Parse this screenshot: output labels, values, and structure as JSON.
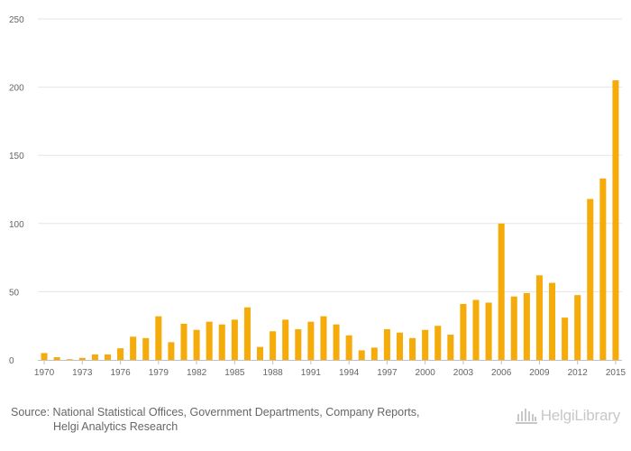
{
  "chart_data": {
    "type": "bar",
    "title": "",
    "xlabel": "",
    "ylabel": "",
    "ylim": [
      0,
      250
    ],
    "yticks": [
      0,
      50,
      100,
      150,
      200,
      250
    ],
    "grid": true,
    "legend": "none",
    "bar_color": "#f5ab0a",
    "categories": [
      1970,
      1971,
      1972,
      1973,
      1974,
      1975,
      1976,
      1977,
      1978,
      1979,
      1980,
      1981,
      1982,
      1983,
      1984,
      1985,
      1986,
      1987,
      1988,
      1989,
      1990,
      1991,
      1992,
      1993,
      1994,
      1995,
      1996,
      1997,
      1998,
      1999,
      2000,
      2001,
      2002,
      2003,
      2004,
      2005,
      2006,
      2007,
      2008,
      2009,
      2010,
      2011,
      2012,
      2013,
      2014,
      2015
    ],
    "values": [
      5,
      2,
      0.5,
      1.5,
      4,
      4,
      8.5,
      17,
      16,
      32,
      13,
      26.5,
      22,
      28,
      26,
      29.5,
      38.5,
      9.5,
      21,
      29.5,
      22.5,
      28,
      32,
      26,
      18,
      7,
      9,
      22.5,
      20,
      16,
      22,
      25,
      18.5,
      41,
      44,
      42,
      100,
      46.5,
      49,
      62,
      56.5,
      31,
      47.5,
      118,
      133,
      205
    ],
    "xtick_labels": [
      "1970",
      "1973",
      "1976",
      "1979",
      "1982",
      "1985",
      "1988",
      "1991",
      "1994",
      "1997",
      "2000",
      "2003",
      "2006",
      "2009",
      "2012",
      "2015"
    ]
  },
  "footer": {
    "source_line1": "Source: National Statistical Offices, Government Departments, Company Reports,",
    "source_line2": "Helgi Analytics Research",
    "logo_text": "HelgiLibrary"
  },
  "colors": {
    "bar": "#f5ab0a",
    "grid": "#e6e6e6",
    "axis_text": "#666666",
    "footer_text": "#666666",
    "logo": "#c8c8c8"
  }
}
